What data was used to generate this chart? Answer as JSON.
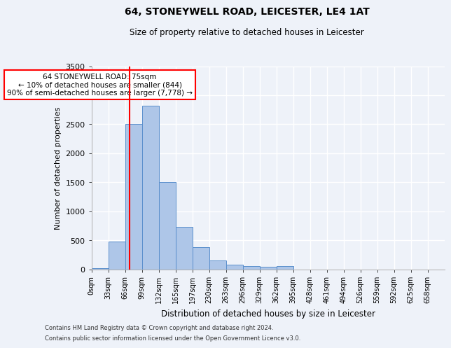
{
  "title": "64, STONEYWELL ROAD, LEICESTER, LE4 1AT",
  "subtitle": "Size of property relative to detached houses in Leicester",
  "xlabel": "Distribution of detached houses by size in Leicester",
  "ylabel": "Number of detached properties",
  "bin_labels": [
    "0sqm",
    "33sqm",
    "66sqm",
    "99sqm",
    "132sqm",
    "165sqm",
    "197sqm",
    "230sqm",
    "263sqm",
    "296sqm",
    "329sqm",
    "362sqm",
    "395sqm",
    "428sqm",
    "461sqm",
    "494sqm",
    "526sqm",
    "559sqm",
    "592sqm",
    "625sqm",
    "658sqm"
  ],
  "bar_values": [
    20,
    480,
    2510,
    2820,
    1500,
    735,
    385,
    155,
    75,
    50,
    40,
    50,
    0,
    0,
    0,
    0,
    0,
    0,
    0,
    0,
    0
  ],
  "bar_color": "#aec6e8",
  "bar_edge_color": "#5a8fcc",
  "bg_color": "#eef2f9",
  "grid_color": "#ffffff",
  "ylim": [
    0,
    3500
  ],
  "yticks": [
    0,
    500,
    1000,
    1500,
    2000,
    2500,
    3000,
    3500
  ],
  "annotation_text": "64 STONEYWELL ROAD: 75sqm\n← 10% of detached houses are smaller (844)\n90% of semi-detached houses are larger (7,778) →",
  "footer_line1": "Contains HM Land Registry data © Crown copyright and database right 2024.",
  "footer_line2": "Contains public sector information licensed under the Open Government Licence v3.0."
}
